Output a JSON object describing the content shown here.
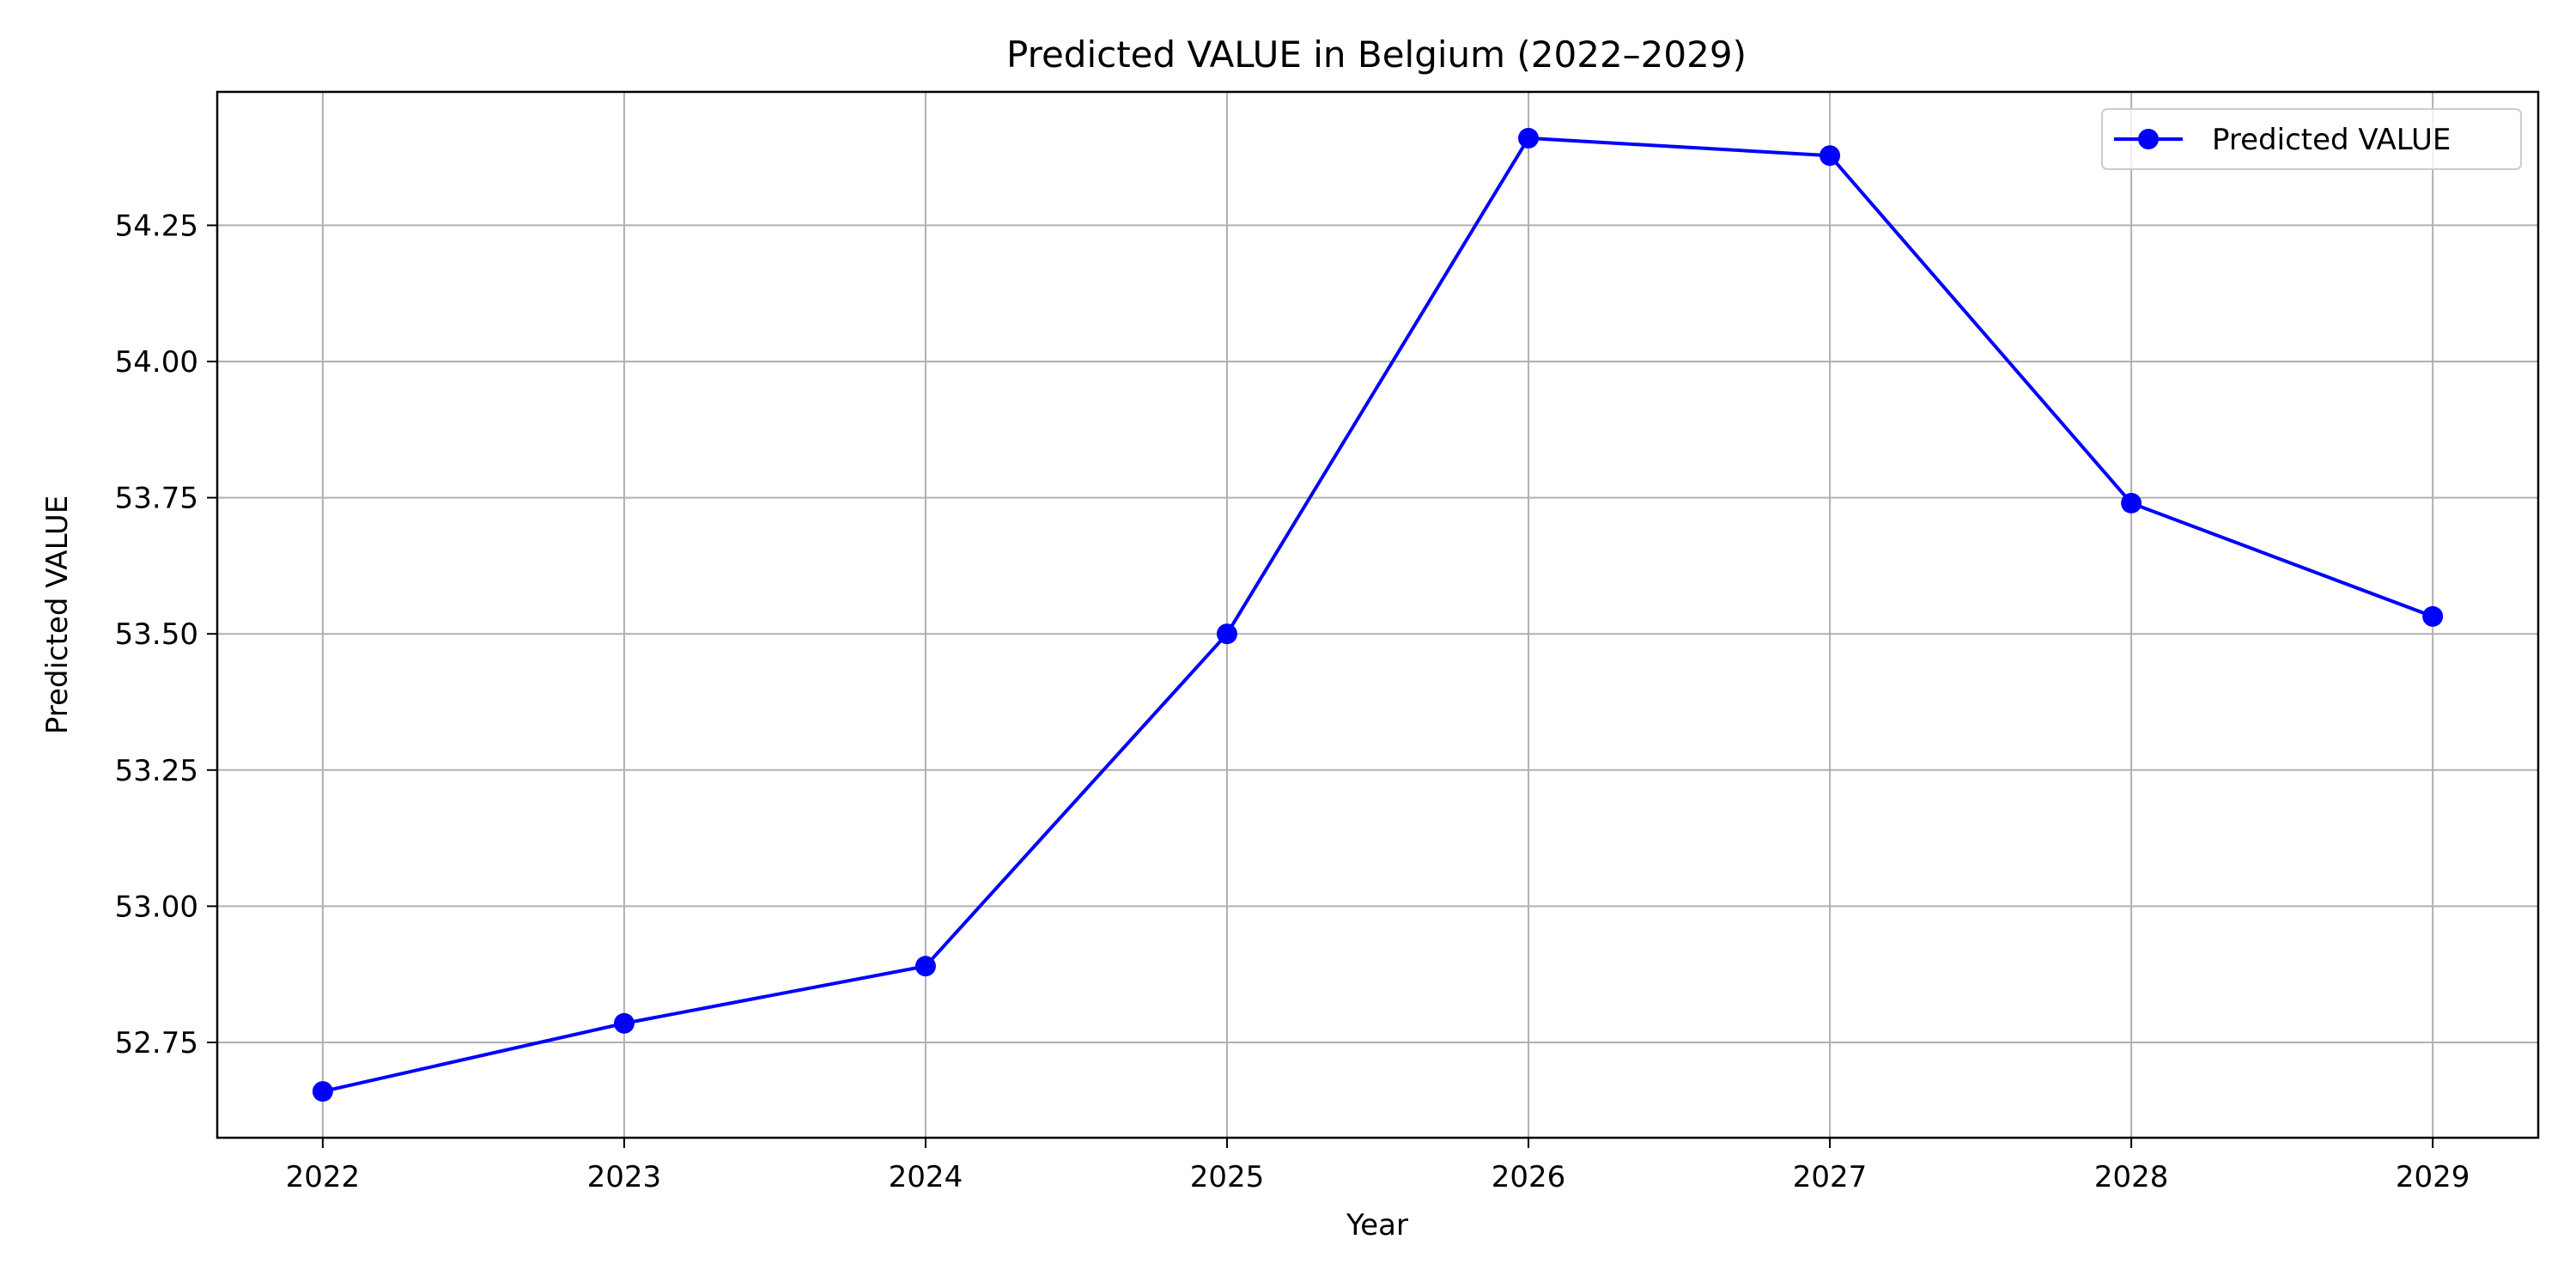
{
  "chart_data": {
    "type": "line",
    "title": "Predicted VALUE in Belgium (2022–2029)",
    "xlabel": "Year",
    "ylabel": "Predicted VALUE",
    "x": [
      2022,
      2023,
      2024,
      2025,
      2026,
      2027,
      2028,
      2029
    ],
    "x_tick_labels": [
      "2022",
      "2023",
      "2024",
      "2025",
      "2026",
      "2027",
      "2028",
      "2029"
    ],
    "y_ticks": [
      52.75,
      53.0,
      53.25,
      53.5,
      53.75,
      54.0,
      54.25
    ],
    "y_tick_labels": [
      "52.75",
      "53.00",
      "53.25",
      "53.50",
      "53.75",
      "54.00",
      "54.25"
    ],
    "xlim": [
      2021.65,
      2029.35
    ],
    "ylim": [
      52.575,
      54.495
    ],
    "grid": true,
    "legend_position": "top-right",
    "series": [
      {
        "name": "Predicted VALUE",
        "color": "#0000ff",
        "marker": "circle",
        "values": [
          52.66,
          52.785,
          52.89,
          53.5,
          54.41,
          54.378,
          53.74,
          53.532
        ]
      }
    ]
  }
}
